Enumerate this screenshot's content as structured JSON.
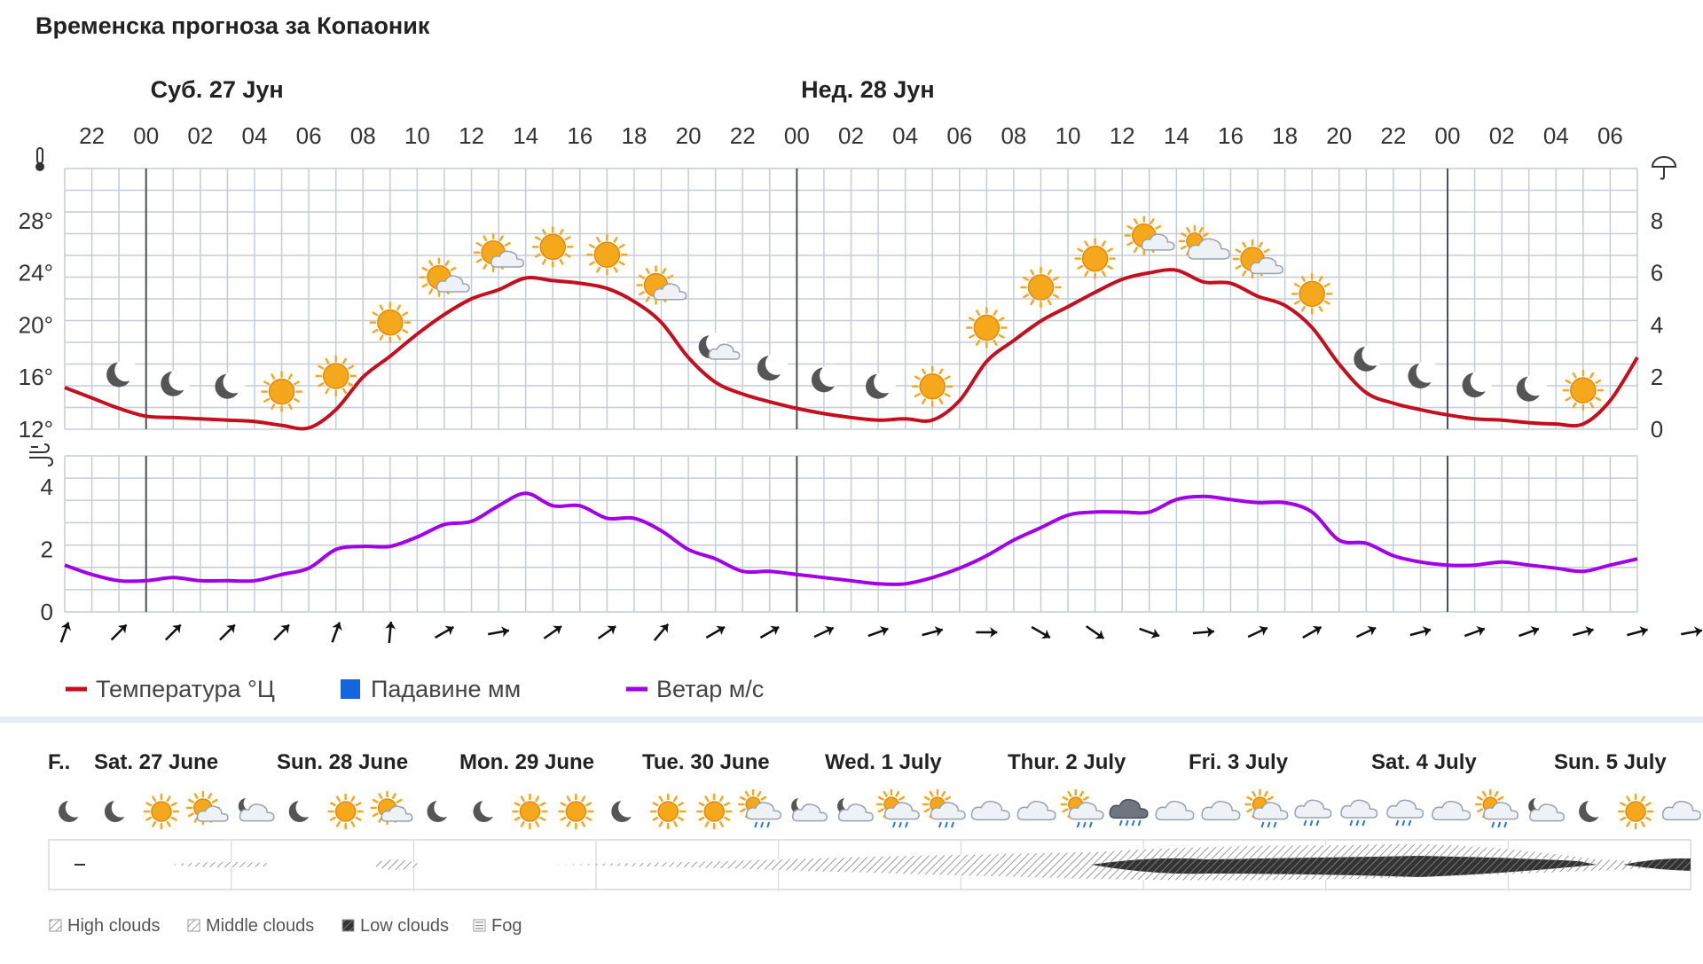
{
  "title": "Временска прогноза за Копаоник",
  "colors": {
    "temperature": "#c40f1e",
    "precipitation": "#1565e0",
    "wind": "#a200e6",
    "grid": "#c5ccd6",
    "sun": "#f5a81c",
    "moon": "#555555"
  },
  "chart_data": [
    {
      "type": "line",
      "title": "",
      "day_labels": [
        "Суб. 27 Јун",
        "Нед. 28 Јун"
      ],
      "hour_ticks": [
        "22",
        "00",
        "02",
        "04",
        "06",
        "08",
        "10",
        "12",
        "14",
        "16",
        "18",
        "20",
        "22",
        "00",
        "02",
        "04",
        "06",
        "08",
        "10",
        "12",
        "14",
        "16",
        "18",
        "20",
        "22",
        "00",
        "02",
        "04",
        "06"
      ],
      "y_left_ticks": [
        "12°",
        "16°",
        "20°",
        "24°",
        "28°"
      ],
      "y_right_ticks": [
        "0",
        "2",
        "4",
        "6",
        "8"
      ],
      "ylim": [
        12,
        32
      ],
      "y2lim": [
        0,
        10
      ],
      "series": [
        {
          "name": "Температура °Ц",
          "values": [
            15.2,
            14.4,
            13.6,
            13.0,
            12.9,
            12.8,
            12.7,
            12.6,
            12.3,
            12.1,
            13.5,
            16.0,
            17.6,
            19.3,
            20.8,
            22.0,
            22.7,
            23.6,
            23.4,
            23.2,
            22.8,
            21.8,
            20.2,
            17.5,
            15.6,
            14.7,
            14.1,
            13.6,
            13.2,
            12.9,
            12.7,
            12.8,
            12.7,
            14.2,
            17.2,
            18.8,
            20.3,
            21.4,
            22.5,
            23.5,
            24.0,
            24.2,
            23.3,
            23.2,
            22.2,
            21.5,
            19.8,
            17.0,
            14.8,
            14.0,
            13.5,
            13.1,
            12.8,
            12.7,
            12.5,
            12.4,
            12.4,
            14.2,
            17.5
          ]
        },
        {
          "name": "Падавине мм",
          "values": []
        }
      ],
      "weather_icons": [
        "moon",
        "moon",
        "moon",
        "sun",
        "sun",
        "sun",
        "sun-cloud",
        "sun-cloud",
        "sun",
        "sun",
        "sun-cloud",
        "moon-cloud",
        "moon",
        "moon",
        "moon",
        "sun",
        "sun",
        "sun",
        "sun",
        "sun-cloud",
        "cloud-sun",
        "sun-cloud",
        "sun",
        "moon",
        "moon",
        "moon",
        "moon",
        "sun"
      ]
    },
    {
      "type": "line",
      "title": "",
      "y_ticks": [
        "0",
        "2",
        "4"
      ],
      "ylim": [
        0,
        5
      ],
      "series": [
        {
          "name": "Ветар м/с",
          "values": [
            1.5,
            1.2,
            1.0,
            1.0,
            1.1,
            1.0,
            1.0,
            1.0,
            1.2,
            1.4,
            2.0,
            2.1,
            2.1,
            2.4,
            2.8,
            2.9,
            3.4,
            3.8,
            3.4,
            3.4,
            3.0,
            3.0,
            2.6,
            2.0,
            1.7,
            1.3,
            1.3,
            1.2,
            1.1,
            1.0,
            0.9,
            0.9,
            1.1,
            1.4,
            1.8,
            2.3,
            2.7,
            3.1,
            3.2,
            3.2,
            3.2,
            3.6,
            3.7,
            3.6,
            3.5,
            3.5,
            3.2,
            2.3,
            2.2,
            1.8,
            1.6,
            1.5,
            1.5,
            1.6,
            1.5,
            1.4,
            1.3,
            1.5,
            1.7
          ]
        }
      ],
      "wind_directions_deg": [
        200,
        225,
        225,
        225,
        225,
        200,
        185,
        240,
        260,
        235,
        235,
        220,
        240,
        240,
        245,
        250,
        255,
        270,
        300,
        305,
        290,
        265,
        245,
        240,
        245,
        255,
        250,
        250,
        255,
        255,
        260
      ]
    }
  ],
  "legend": {
    "temperature": "Температура °Ц",
    "precipitation": "Падавине мм",
    "wind": "Ветар м/с"
  },
  "multiday": {
    "days": [
      "F..",
      "Sat. 27 June",
      "Sun. 28 June",
      "Mon. 29 June",
      "Tue. 30 June",
      "Wed. 1 July",
      "Thur. 2 July",
      "Fri. 3 July",
      "Sat. 4 July",
      "Sun. 5 July"
    ],
    "icons": [
      "moon",
      "moon",
      "sun",
      "sun-cloud",
      "moon-cloud",
      "moon",
      "sun",
      "sun-cloud",
      "moon",
      "moon",
      "sun",
      "sun",
      "moon",
      "sun",
      "sun",
      "sun-cloud-rain",
      "moon-cloud",
      "moon-cloud",
      "sun-cloud-rain",
      "sun-cloud-rain",
      "cloud",
      "cloud",
      "sun-cloud-rain",
      "darkcloud-rain",
      "cloud",
      "cloud",
      "sun-cloud-rain",
      "cloud-rain",
      "cloud-rain",
      "cloud-rain",
      "cloud",
      "sun-cloud-rain",
      "moon-cloud",
      "moon",
      "sun",
      "cloud"
    ],
    "legend": [
      "High clouds",
      "Middle clouds",
      "Low clouds",
      "Fog"
    ]
  }
}
